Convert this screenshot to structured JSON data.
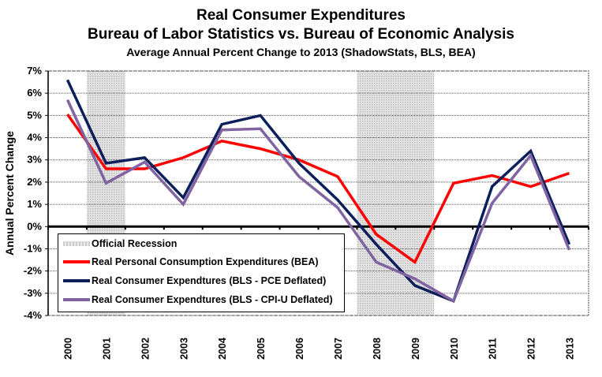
{
  "chart_data": {
    "type": "line",
    "title": "Real Consumer Expenditures",
    "subtitle": "Bureau of Labor Statistics vs. Bureau of Economic Analysis",
    "subtitle2": "Average Annual Percent Change to 2013 (ShadowStats, BLS, BEA)",
    "xlabel": "",
    "ylabel": "Annual Percent Change",
    "ylim": [
      -4,
      7
    ],
    "y_ticks": [
      "7%",
      "6%",
      "5%",
      "4%",
      "3%",
      "2%",
      "1%",
      "0%",
      "-1%",
      "-2%",
      "-3%",
      "-4%"
    ],
    "y_tick_values": [
      7,
      6,
      5,
      4,
      3,
      2,
      1,
      0,
      -1,
      -2,
      -3,
      -4
    ],
    "categories": [
      "2000",
      "2001",
      "2002",
      "2003",
      "2004",
      "2005",
      "2006",
      "2007",
      "2008",
      "2009",
      "2010",
      "2011",
      "2012",
      "2013"
    ],
    "grid": true,
    "recessions": [
      {
        "label": "Official Recession",
        "from": 2000.5,
        "to": 2001.5
      },
      {
        "label": "Official Recession",
        "from": 2007.5,
        "to": 2009.5
      }
    ],
    "series": [
      {
        "name": "Real Personal Consumption Expenditures (BEA)",
        "color": "#ff0000",
        "values": [
          5.05,
          2.6,
          2.6,
          3.1,
          3.85,
          3.5,
          3.0,
          2.25,
          -0.35,
          -1.6,
          1.95,
          2.3,
          1.8,
          2.4
        ]
      },
      {
        "name": "Real Consumer Expendtures (BLS - PCE Deflated)",
        "color": "#0c1f5c",
        "values": [
          6.6,
          2.85,
          3.1,
          1.3,
          4.6,
          5.0,
          2.85,
          1.2,
          -0.8,
          -2.65,
          -3.35,
          1.8,
          3.4,
          -0.8
        ]
      },
      {
        "name": "Real Consumer Expendtures (BLS - CPI-U Deflated)",
        "color": "#8064a2",
        "values": [
          5.7,
          1.95,
          2.9,
          1.0,
          4.35,
          4.4,
          2.25,
          0.85,
          -1.6,
          -2.35,
          -3.35,
          1.05,
          3.2,
          -1.05
        ]
      }
    ],
    "legend": {
      "placement": "bottom-left",
      "items": [
        {
          "label": "Official Recession",
          "kind": "recession"
        },
        {
          "label": "Real Personal Consumption Expenditures (BEA)",
          "color": "#ff0000"
        },
        {
          "label": "Real Consumer Expendtures (BLS - PCE Deflated)",
          "color": "#0c1f5c"
        },
        {
          "label": "Real Consumer Expendtures (BLS - CPI-U Deflated)",
          "color": "#8064a2"
        }
      ]
    }
  }
}
